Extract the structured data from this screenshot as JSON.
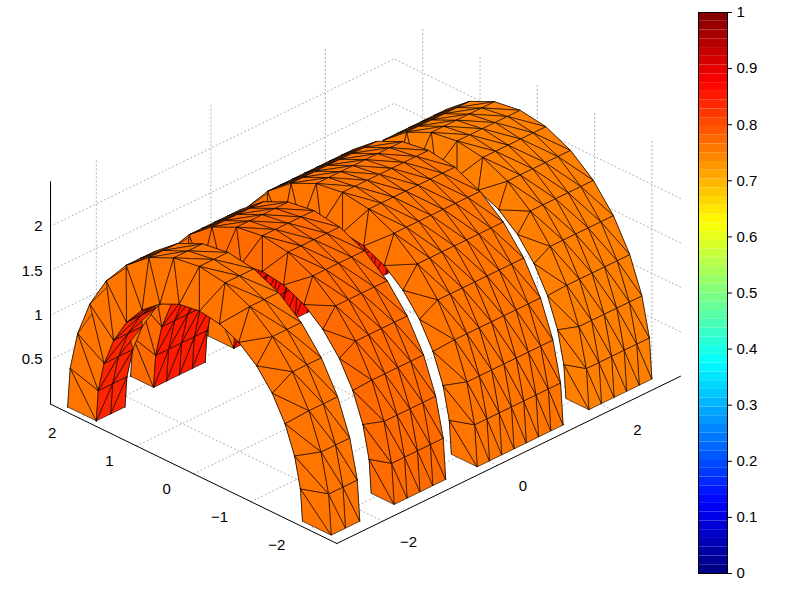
{
  "chart_data": {
    "type": "surface3d",
    "xlim": [
      -2.8,
      3.2
    ],
    "ylim": [
      -2.5,
      2.5
    ],
    "zlim": [
      0,
      2.5
    ],
    "xticks": [
      -2,
      0,
      2
    ],
    "yticks": [
      -2,
      -1,
      0,
      1,
      2
    ],
    "zticks": [
      0.5,
      1,
      1.5,
      2
    ],
    "grid": true,
    "colorbar": {
      "lim": [
        0,
        1
      ],
      "ticks": [
        0,
        0.1,
        0.2,
        0.3,
        0.4,
        0.5,
        0.6,
        0.7,
        0.8,
        0.9,
        1
      ]
    },
    "arches": [
      {
        "x": [
          -2.7,
          -2.2
        ],
        "radius": [
          1.8,
          2.3
        ],
        "outer_value": 0.76,
        "inner_value": 0.84
      },
      {
        "x": [
          -1.6,
          -0.7
        ],
        "radius": [
          1.9,
          2.3
        ],
        "outer_value": 0.77,
        "inner_value": 0.85
      },
      {
        "x": [
          -0.2,
          1.3
        ],
        "radius": [
          1.9,
          2.35
        ],
        "outer_value": 0.76,
        "inner_value": 0.86
      },
      {
        "x": [
          1.8,
          2.9
        ],
        "radius": [
          1.9,
          2.3
        ],
        "outer_value": 0.75,
        "inner_value": 0.85
      }
    ]
  }
}
